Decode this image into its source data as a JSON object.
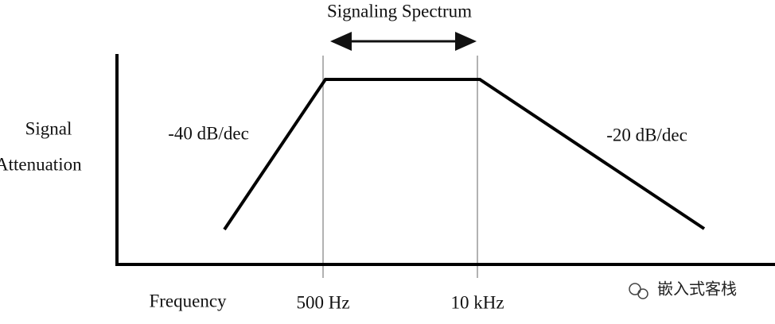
{
  "title": "Signaling Spectrum",
  "y_axis_label": {
    "line1": "Signal",
    "line2": "Attenuation"
  },
  "x_axis_label": "Frequency",
  "markers": [
    "500 Hz",
    "10 kHz"
  ],
  "slopes": {
    "left": "-40 dB/dec",
    "right": "-20 dB/dec"
  },
  "watermark": "嵌入式客栈"
}
